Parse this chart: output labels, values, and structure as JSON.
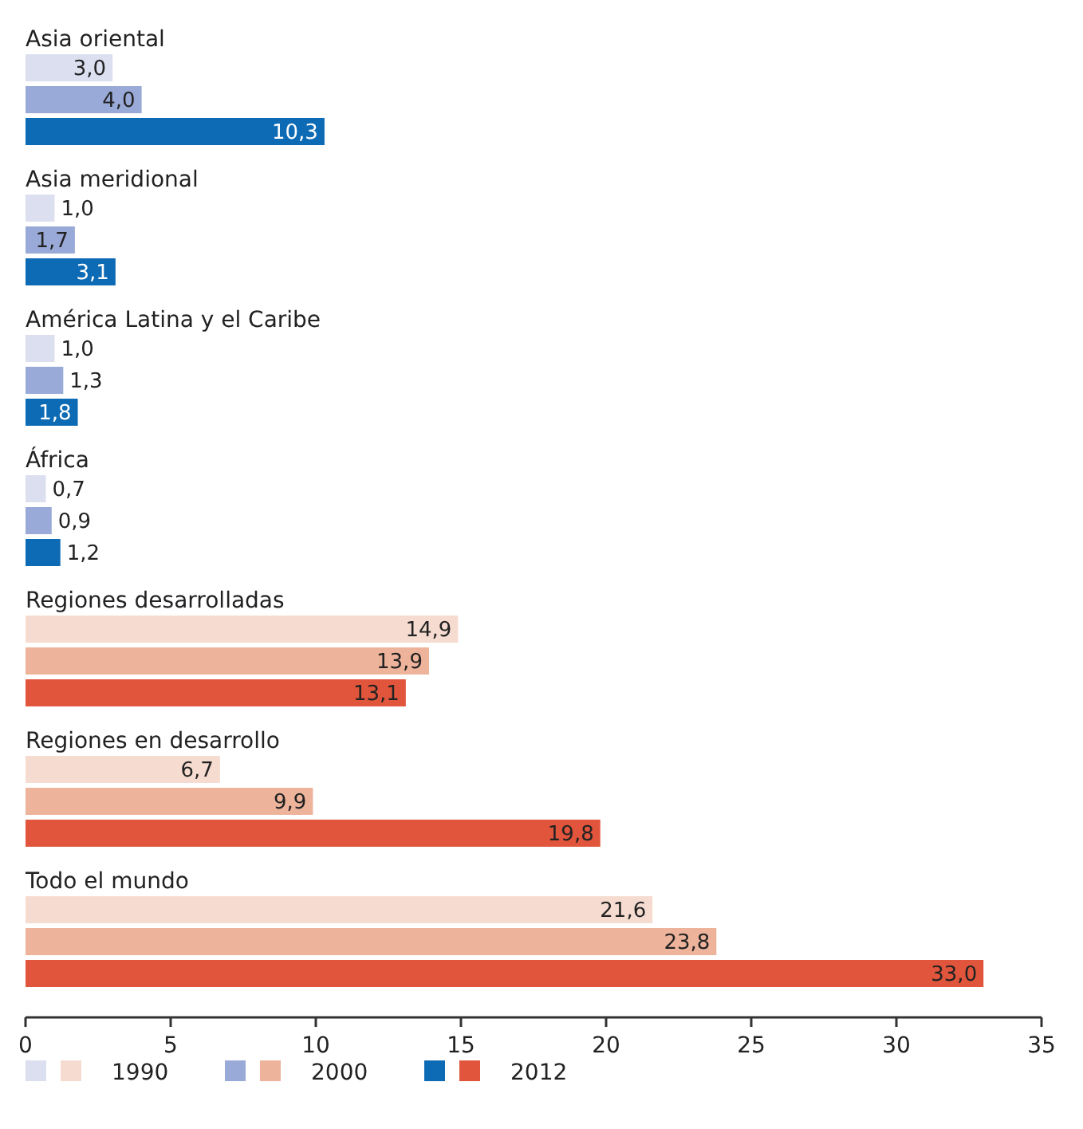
{
  "chart_data": {
    "type": "bar",
    "orientation": "horizontal",
    "categories": [
      "Asia oriental",
      "Asia meridional",
      "América Latina y el Caribe",
      "África",
      "Regiones desarrolladas",
      "Regiones en desarrollo",
      "Todo el mundo"
    ],
    "series": [
      {
        "name": "1990",
        "colors": [
          "#dcdff0",
          "#dcdff0",
          "#dcdff0",
          "#dcdff0",
          "#f6dcd0",
          "#f6dcd0",
          "#f6dcd0"
        ],
        "values": [
          3.0,
          1.0,
          1.0,
          0.7,
          14.9,
          6.7,
          21.6
        ],
        "value_labels": [
          "3,0",
          "1,0",
          "1,0",
          "0,7",
          "14,9",
          "6,7",
          "21,6"
        ]
      },
      {
        "name": "2000",
        "colors": [
          "#9aaad8",
          "#9aaad8",
          "#9aaad8",
          "#9aaad8",
          "#eeb39b",
          "#eeb39b",
          "#eeb39b"
        ],
        "values": [
          4.0,
          1.7,
          1.3,
          0.9,
          13.9,
          9.9,
          23.8
        ],
        "value_labels": [
          "4,0",
          "1,7",
          "1,3",
          "0,9",
          "13,9",
          "9,9",
          "23,8"
        ]
      },
      {
        "name": "2012",
        "colors": [
          "#0d6ab5",
          "#0d6ab5",
          "#0d6ab5",
          "#0d6ab5",
          "#e0553b",
          "#e0553b",
          "#e0553b"
        ],
        "values": [
          10.3,
          3.1,
          1.8,
          1.2,
          13.1,
          19.8,
          33.0
        ],
        "value_labels": [
          "10,3",
          "3,1",
          "1,8",
          "1,2",
          "13,1",
          "19,8",
          "33,0"
        ]
      }
    ],
    "xlim": [
      0,
      35
    ],
    "xticks": [
      0,
      5,
      10,
      15,
      20,
      25,
      30,
      35
    ],
    "legend": "bottom"
  }
}
